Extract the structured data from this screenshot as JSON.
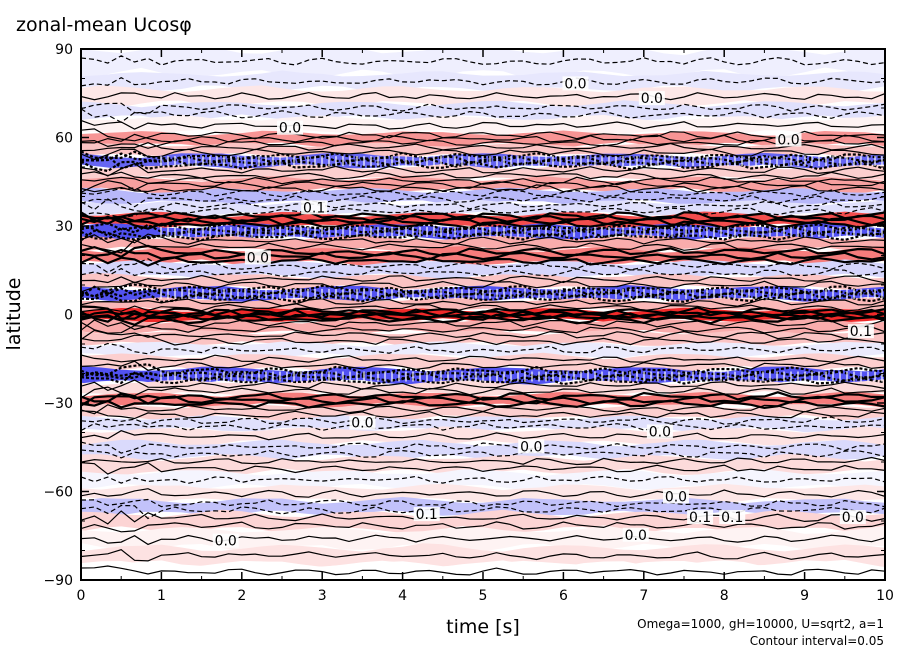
{
  "chart_data": {
    "type": "heatmap",
    "title": "zonal-mean Ucosφ",
    "xlabel": "time [s]",
    "ylabel": "latitude",
    "xlim": [
      0,
      10
    ],
    "ylim": [
      -90,
      90
    ],
    "x_ticks": [
      "0",
      "1",
      "2",
      "3",
      "4",
      "5",
      "6",
      "7",
      "8",
      "9",
      "10"
    ],
    "y_ticks": [
      "−90",
      "−60",
      "−30",
      "0",
      "30",
      "60",
      "90"
    ],
    "y_tick_values": [
      -90,
      -60,
      -30,
      0,
      30,
      60,
      90
    ],
    "x_tick_values": [
      0,
      1,
      2,
      3,
      4,
      5,
      6,
      7,
      8,
      9,
      10
    ],
    "annotation_params": "Omega=1000, gH=10000, U=sqrt2, a=1",
    "annotation_interval": "Contour interval=0.05",
    "contour_labels": [
      {
        "text": "0.0",
        "x": 6.15,
        "y": 78
      },
      {
        "text": "0.0",
        "x": 7.1,
        "y": 73
      },
      {
        "text": "0.0",
        "x": 2.6,
        "y": 63
      },
      {
        "text": "0.0",
        "x": 8.8,
        "y": 59
      },
      {
        "text": "0.1",
        "x": 2.9,
        "y": 36
      },
      {
        "text": "0.0",
        "x": 2.2,
        "y": 19
      },
      {
        "text": "0.1",
        "x": 9.7,
        "y": -6
      },
      {
        "text": "0.0",
        "x": 3.5,
        "y": -37
      },
      {
        "text": "0.0",
        "x": 5.6,
        "y": -45
      },
      {
        "text": "0.0",
        "x": 7.2,
        "y": -40
      },
      {
        "text": "0.0",
        "x": 7.4,
        "y": -62
      },
      {
        "text": "0.1",
        "x": 8.1,
        "y": -69
      },
      {
        "text": "0.1",
        "x": 7.7,
        "y": -69
      },
      {
        "text": "0.0",
        "x": 9.6,
        "y": -69
      },
      {
        "text": "0.0",
        "x": 1.8,
        "y": -77
      },
      {
        "text": "0.0",
        "x": 6.9,
        "y": -75
      },
      {
        "text": "0.1",
        "x": 4.3,
        "y": -68
      }
    ],
    "bands": [
      {
        "lat": 84,
        "value": -0.08
      },
      {
        "lat": 79,
        "value": -0.12
      },
      {
        "lat": 74,
        "value": 0.1
      },
      {
        "lat": 69,
        "value": -0.15
      },
      {
        "lat": 64,
        "value": 0.05
      },
      {
        "lat": 59,
        "value": 0.45
      },
      {
        "lat": 56,
        "value": 0.25
      },
      {
        "lat": 52,
        "value": -0.75
      },
      {
        "lat": 48,
        "value": 0.2
      },
      {
        "lat": 44,
        "value": 0.4
      },
      {
        "lat": 40,
        "value": -0.35
      },
      {
        "lat": 36,
        "value": -0.15
      },
      {
        "lat": 32,
        "value": 0.75
      },
      {
        "lat": 28,
        "value": -0.85
      },
      {
        "lat": 24,
        "value": 0.35
      },
      {
        "lat": 20,
        "value": 0.55
      },
      {
        "lat": 15,
        "value": -0.2
      },
      {
        "lat": 11,
        "value": 0.25
      },
      {
        "lat": 7,
        "value": -0.85
      },
      {
        "lat": 3,
        "value": 0.3
      },
      {
        "lat": 0,
        "value": 0.9
      },
      {
        "lat": -4,
        "value": 0.35
      },
      {
        "lat": -8,
        "value": 0.25
      },
      {
        "lat": -12,
        "value": -0.1
      },
      {
        "lat": -16,
        "value": 0.2
      },
      {
        "lat": -21,
        "value": -0.85
      },
      {
        "lat": -25,
        "value": 0.15
      },
      {
        "lat": -29,
        "value": 0.55
      },
      {
        "lat": -33,
        "value": 0.2
      },
      {
        "lat": -37,
        "value": -0.15
      },
      {
        "lat": -41,
        "value": 0.12
      },
      {
        "lat": -46,
        "value": -0.18
      },
      {
        "lat": -51,
        "value": 0.15
      },
      {
        "lat": -56,
        "value": -0.05
      },
      {
        "lat": -61,
        "value": 0.1
      },
      {
        "lat": -65,
        "value": -0.3
      },
      {
        "lat": -70,
        "value": 0.18
      },
      {
        "lat": -76,
        "value": 0.05
      },
      {
        "lat": -82,
        "value": 0.12
      },
      {
        "lat": -87,
        "value": 0.0
      }
    ],
    "colors": {
      "positive": "#ee1111",
      "negative": "#3333ee",
      "contour": "#000000",
      "background": "#ffffff"
    }
  }
}
